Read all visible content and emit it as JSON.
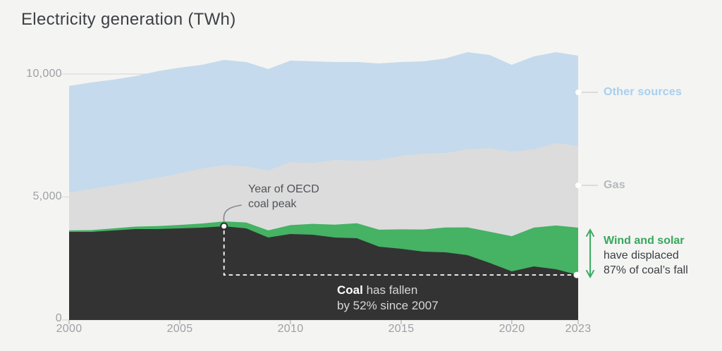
{
  "title": "Electricity generation (TWh)",
  "chart_data": {
    "type": "area",
    "stacked": true,
    "title": "Electricity generation (TWh)",
    "xlabel": "",
    "ylabel": "TWh",
    "ylim": [
      0,
      11000
    ],
    "grid": "horizontal",
    "legend_position": "right-labels",
    "x": [
      2000,
      2001,
      2002,
      2003,
      2004,
      2005,
      2006,
      2007,
      2008,
      2009,
      2010,
      2011,
      2012,
      2013,
      2014,
      2015,
      2016,
      2017,
      2018,
      2019,
      2020,
      2021,
      2022,
      2023
    ],
    "series": [
      {
        "name": "Coal",
        "color": "#333333",
        "values": [
          3582,
          3582,
          3639,
          3696,
          3696,
          3725,
          3754,
          3810,
          3725,
          3353,
          3496,
          3467,
          3353,
          3324,
          2980,
          2894,
          2779,
          2750,
          2636,
          2321,
          1977,
          2177,
          2063,
          1830
        ]
      },
      {
        "name": "Wind and solar",
        "color": "#45b264",
        "values": [
          60,
          70,
          85,
          100,
          120,
          140,
          170,
          200,
          240,
          290,
          360,
          440,
          520,
          610,
          690,
          790,
          900,
          1010,
          1130,
          1270,
          1430,
          1580,
          1780,
          1925
        ]
      },
      {
        "name": "Gas",
        "color": "#dcdcdc",
        "values": [
          1544,
          1677,
          1748,
          1820,
          1972,
          2095,
          2236,
          2293,
          2281,
          2431,
          2562,
          2482,
          2631,
          2541,
          2834,
          2992,
          3083,
          3030,
          3168,
          3400,
          3441,
          3177,
          3348,
          3322
        ]
      },
      {
        "name": "Other sources",
        "color": "#c5daec",
        "values": [
          4327,
          4327,
          4298,
          4298,
          4326,
          4298,
          4212,
          4270,
          4241,
          4126,
          4126,
          4127,
          3983,
          4012,
          3926,
          3811,
          3754,
          3840,
          3954,
          3782,
          3524,
          3782,
          3697,
          3668
        ]
      }
    ],
    "yticks": [
      {
        "value": 0,
        "label": "0"
      },
      {
        "value": 5000,
        "label": "5,000"
      },
      {
        "value": 10000,
        "label": "10,000"
      }
    ],
    "xticks": [
      {
        "value": 2000,
        "label": "2000"
      },
      {
        "value": 2005,
        "label": "2005"
      },
      {
        "value": 2010,
        "label": "2010"
      },
      {
        "value": 2015,
        "label": "2015"
      },
      {
        "value": 2020,
        "label": "2020"
      },
      {
        "value": 2023,
        "label": "2023"
      }
    ]
  },
  "annotations": {
    "coal_peak": {
      "line1": "Year of OECD",
      "line2": "coal peak",
      "year": 2007
    },
    "coal_note": {
      "bold": "Coal",
      "line1_rest": " has fallen",
      "line2": "by 52% since 2007"
    },
    "wind_note": {
      "bold": "Wind and solar",
      "line2": "have displaced",
      "line3": "87% of coal’s fall"
    }
  },
  "colors": {
    "background": "#f4f4f2",
    "gridline": "#dbdbd9",
    "dashed_line": "#ffffff",
    "wind_green": "#3aad62",
    "connector_gray": "#d3d4d6",
    "curve_gray": "#85888c"
  }
}
